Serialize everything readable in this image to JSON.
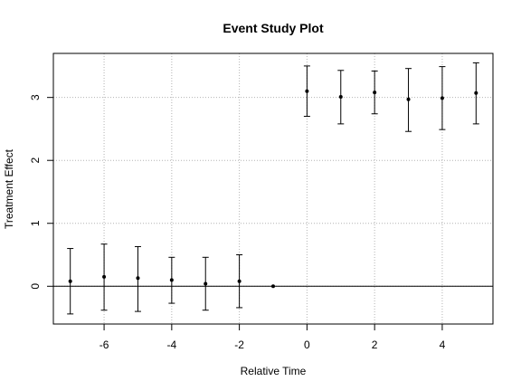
{
  "chart_data": {
    "type": "scatter",
    "title": "Event Study Plot",
    "xlabel": "Relative Time",
    "ylabel": "Treatment Effect",
    "xlim": [
      -7.5,
      5.5
    ],
    "ylim": [
      -0.6,
      3.7
    ],
    "x_ticks": [
      -6,
      -4,
      -2,
      0,
      2,
      4
    ],
    "y_ticks": [
      0,
      1,
      2,
      3
    ],
    "x_grid": [
      -6,
      -4,
      -2,
      0,
      2,
      4
    ],
    "y_grid": [
      0,
      1,
      2,
      3
    ],
    "grid": true,
    "reference_line_y": 0,
    "series": [
      {
        "points": [
          {
            "x": -7,
            "y": 0.08,
            "lower": -0.44,
            "upper": 0.6
          },
          {
            "x": -6,
            "y": 0.15,
            "lower": -0.38,
            "upper": 0.67
          },
          {
            "x": -5,
            "y": 0.13,
            "lower": -0.4,
            "upper": 0.63
          },
          {
            "x": -4,
            "y": 0.1,
            "lower": -0.27,
            "upper": 0.46
          },
          {
            "x": -3,
            "y": 0.04,
            "lower": -0.38,
            "upper": 0.46
          },
          {
            "x": -2,
            "y": 0.08,
            "lower": -0.34,
            "upper": 0.5
          },
          {
            "x": -1,
            "y": 0.0,
            "lower": 0.0,
            "upper": 0.0
          },
          {
            "x": 0,
            "y": 3.1,
            "lower": 2.7,
            "upper": 3.5
          },
          {
            "x": 1,
            "y": 3.01,
            "lower": 2.58,
            "upper": 3.43
          },
          {
            "x": 2,
            "y": 3.08,
            "lower": 2.74,
            "upper": 3.42
          },
          {
            "x": 3,
            "y": 2.97,
            "lower": 2.46,
            "upper": 3.46
          },
          {
            "x": 4,
            "y": 2.99,
            "lower": 2.49,
            "upper": 3.49
          },
          {
            "x": 5,
            "y": 3.07,
            "lower": 2.58,
            "upper": 3.55
          }
        ]
      }
    ]
  }
}
